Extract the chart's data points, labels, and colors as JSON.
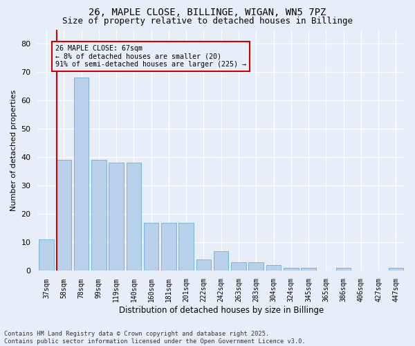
{
  "title1": "26, MAPLE CLOSE, BILLINGE, WIGAN, WN5 7PZ",
  "title2": "Size of property relative to detached houses in Billinge",
  "xlabel": "Distribution of detached houses by size in Billinge",
  "ylabel": "Number of detached properties",
  "categories": [
    "37sqm",
    "58sqm",
    "78sqm",
    "99sqm",
    "119sqm",
    "140sqm",
    "160sqm",
    "181sqm",
    "201sqm",
    "222sqm",
    "242sqm",
    "263sqm",
    "283sqm",
    "304sqm",
    "324sqm",
    "345sqm",
    "365sqm",
    "386sqm",
    "406sqm",
    "427sqm",
    "447sqm"
  ],
  "values": [
    11,
    39,
    68,
    39,
    38,
    38,
    17,
    17,
    17,
    4,
    7,
    3,
    3,
    2,
    1,
    1,
    0,
    1,
    0,
    0,
    1
  ],
  "bar_color": "#b8d0ea",
  "bar_edge_color": "#6aaed6",
  "vline_color": "#cc0000",
  "annotation_text": "26 MAPLE CLOSE: 67sqm\n← 8% of detached houses are smaller (20)\n91% of semi-detached houses are larger (225) →",
  "annotation_box_color": "#cc0000",
  "ylim": [
    0,
    85
  ],
  "yticks": [
    0,
    10,
    20,
    30,
    40,
    50,
    60,
    70,
    80
  ],
  "footnote": "Contains HM Land Registry data © Crown copyright and database right 2025.\nContains public sector information licensed under the Open Government Licence v3.0.",
  "bg_color": "#e8eef8",
  "grid_color": "#ffffff",
  "title1_fontsize": 10,
  "title2_fontsize": 9
}
